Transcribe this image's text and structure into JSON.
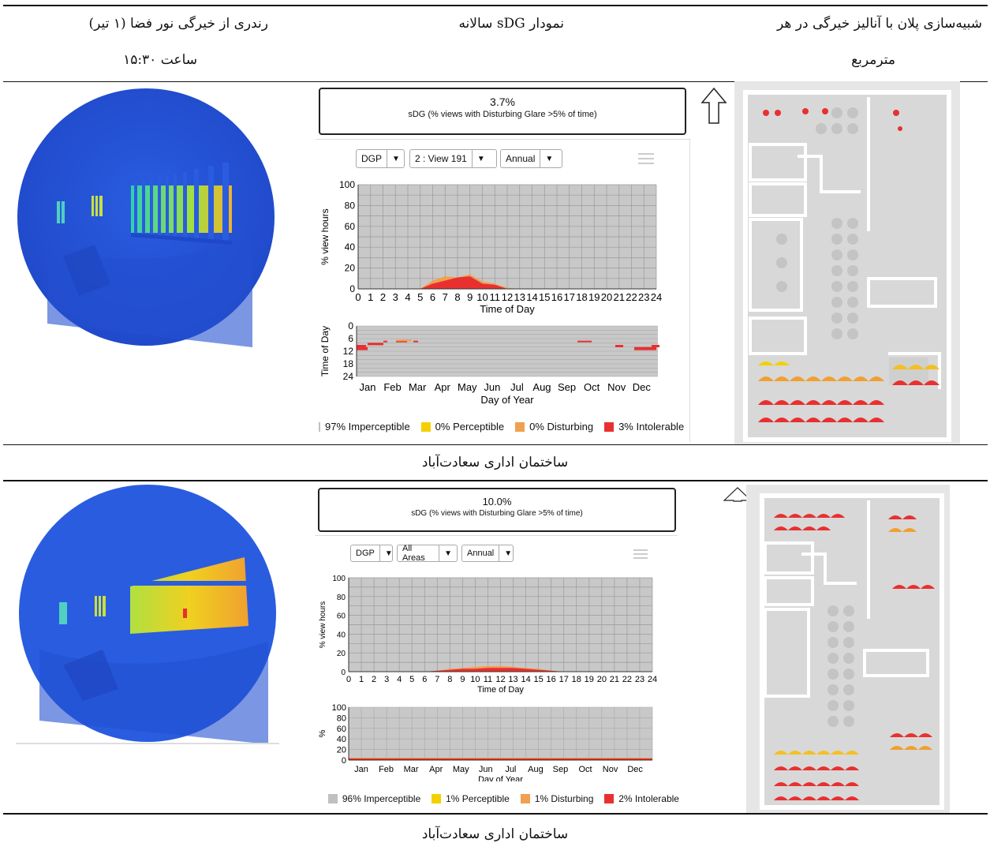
{
  "header": {
    "col_render_line1": "رندری از خیرگی نور فضا (۱ تیر)",
    "col_render_line2": "ساعت ۱۵:۳۰",
    "col_chart": "نمودار sDG سالانه",
    "col_plan_line1": "شبیه‌سازی پلان با آنالیز خیرگی در هر",
    "col_plan_line2": "مترمربع"
  },
  "rows": [
    {
      "caption": "ساختمان اداری سعادت‌آباد",
      "sdg_value": "3.7%",
      "sdg_desc": "sDG (% views with Disturbing Glare >5% of time)",
      "dropdowns": [
        "DGP",
        "2 : View 191",
        "Annual"
      ],
      "legend": [
        "97% Imperceptible",
        "0% Perceptible",
        "0% Disturbing",
        "3% Intolerable"
      ]
    },
    {
      "caption": "ساختمان اداری سعادت‌آباد",
      "sdg_value": "10.0%",
      "sdg_desc": "sDG (% views with Disturbing Glare >5% of time)",
      "dropdowns": [
        "DGP",
        "All Areas",
        "Annual"
      ],
      "legend": [
        "96% Imperceptible",
        "1% Perceptible",
        "1% Disturbing",
        "2% Intolerable"
      ]
    }
  ],
  "colors": {
    "imperceptible": "#c0c0c0",
    "perceptible": "#f5d000",
    "disturbing": "#f0a050",
    "intolerable": "#e83030",
    "plot_bg": "#c8c8c8"
  },
  "chart_data": [
    {
      "type": "area",
      "title": "",
      "xlabel": "Time of Day",
      "ylabel": "% view hours",
      "x": [
        0,
        1,
        2,
        3,
        4,
        5,
        6,
        7,
        8,
        9,
        10,
        11,
        12,
        13,
        14,
        15,
        16,
        17,
        18,
        19,
        20,
        21,
        22,
        23,
        24
      ],
      "ylim": [
        0,
        100
      ],
      "yticks": [
        0,
        20,
        40,
        60,
        80,
        100
      ],
      "series": [
        {
          "name": "Intolerable",
          "values": [
            0,
            0,
            0,
            0,
            0,
            0,
            5,
            8,
            11,
            12,
            5,
            4,
            0,
            0,
            0,
            0,
            0,
            0,
            0,
            0,
            0,
            0,
            0,
            0,
            0
          ]
        },
        {
          "name": "Disturbing",
          "values": [
            0,
            0,
            0,
            0,
            0,
            0,
            8,
            12,
            11,
            14,
            7,
            5,
            1,
            0,
            0,
            0,
            0,
            0,
            0,
            0,
            0,
            0,
            0,
            0,
            0
          ]
        }
      ]
    },
    {
      "type": "heatmap",
      "xlabel": "Day of Year",
      "ylabel": "Time of Day",
      "categories": [
        "Jan",
        "Feb",
        "Mar",
        "Apr",
        "May",
        "Jun",
        "Jul",
        "Aug",
        "Sep",
        "Oct",
        "Nov",
        "Dec"
      ],
      "yticks": [
        0,
        6,
        12,
        18,
        24
      ]
    },
    {
      "type": "area",
      "title": "",
      "xlabel": "Time of Day",
      "ylabel": "% view hours",
      "x": [
        0,
        1,
        2,
        3,
        4,
        5,
        6,
        7,
        8,
        9,
        10,
        11,
        12,
        13,
        14,
        15,
        16,
        17,
        18,
        19,
        20,
        21,
        22,
        23,
        24
      ],
      "ylim": [
        0,
        100
      ],
      "yticks": [
        0,
        20,
        40,
        60,
        80,
        100
      ],
      "series": [
        {
          "name": "Intolerable",
          "values": [
            0,
            0,
            0,
            0,
            0,
            0,
            0,
            1,
            2,
            3,
            3,
            4,
            4,
            4,
            3,
            2,
            1,
            0,
            0,
            0,
            0,
            0,
            0,
            0,
            0
          ]
        },
        {
          "name": "Disturbing",
          "values": [
            0,
            0,
            0,
            0,
            0,
            0,
            0,
            1,
            3,
            4,
            5,
            6,
            6,
            5,
            4,
            3,
            1,
            0,
            0,
            0,
            0,
            0,
            0,
            0,
            0
          ]
        }
      ]
    },
    {
      "type": "area",
      "xlabel": "Day of Year",
      "ylabel": "%",
      "categories": [
        "Jan",
        "Feb",
        "Mar",
        "Apr",
        "May",
        "Jun",
        "Jul",
        "Aug",
        "Sep",
        "Oct",
        "Nov",
        "Dec"
      ],
      "ylim": [
        0,
        100
      ],
      "yticks": [
        0,
        20,
        40,
        60,
        80,
        100
      ]
    }
  ]
}
